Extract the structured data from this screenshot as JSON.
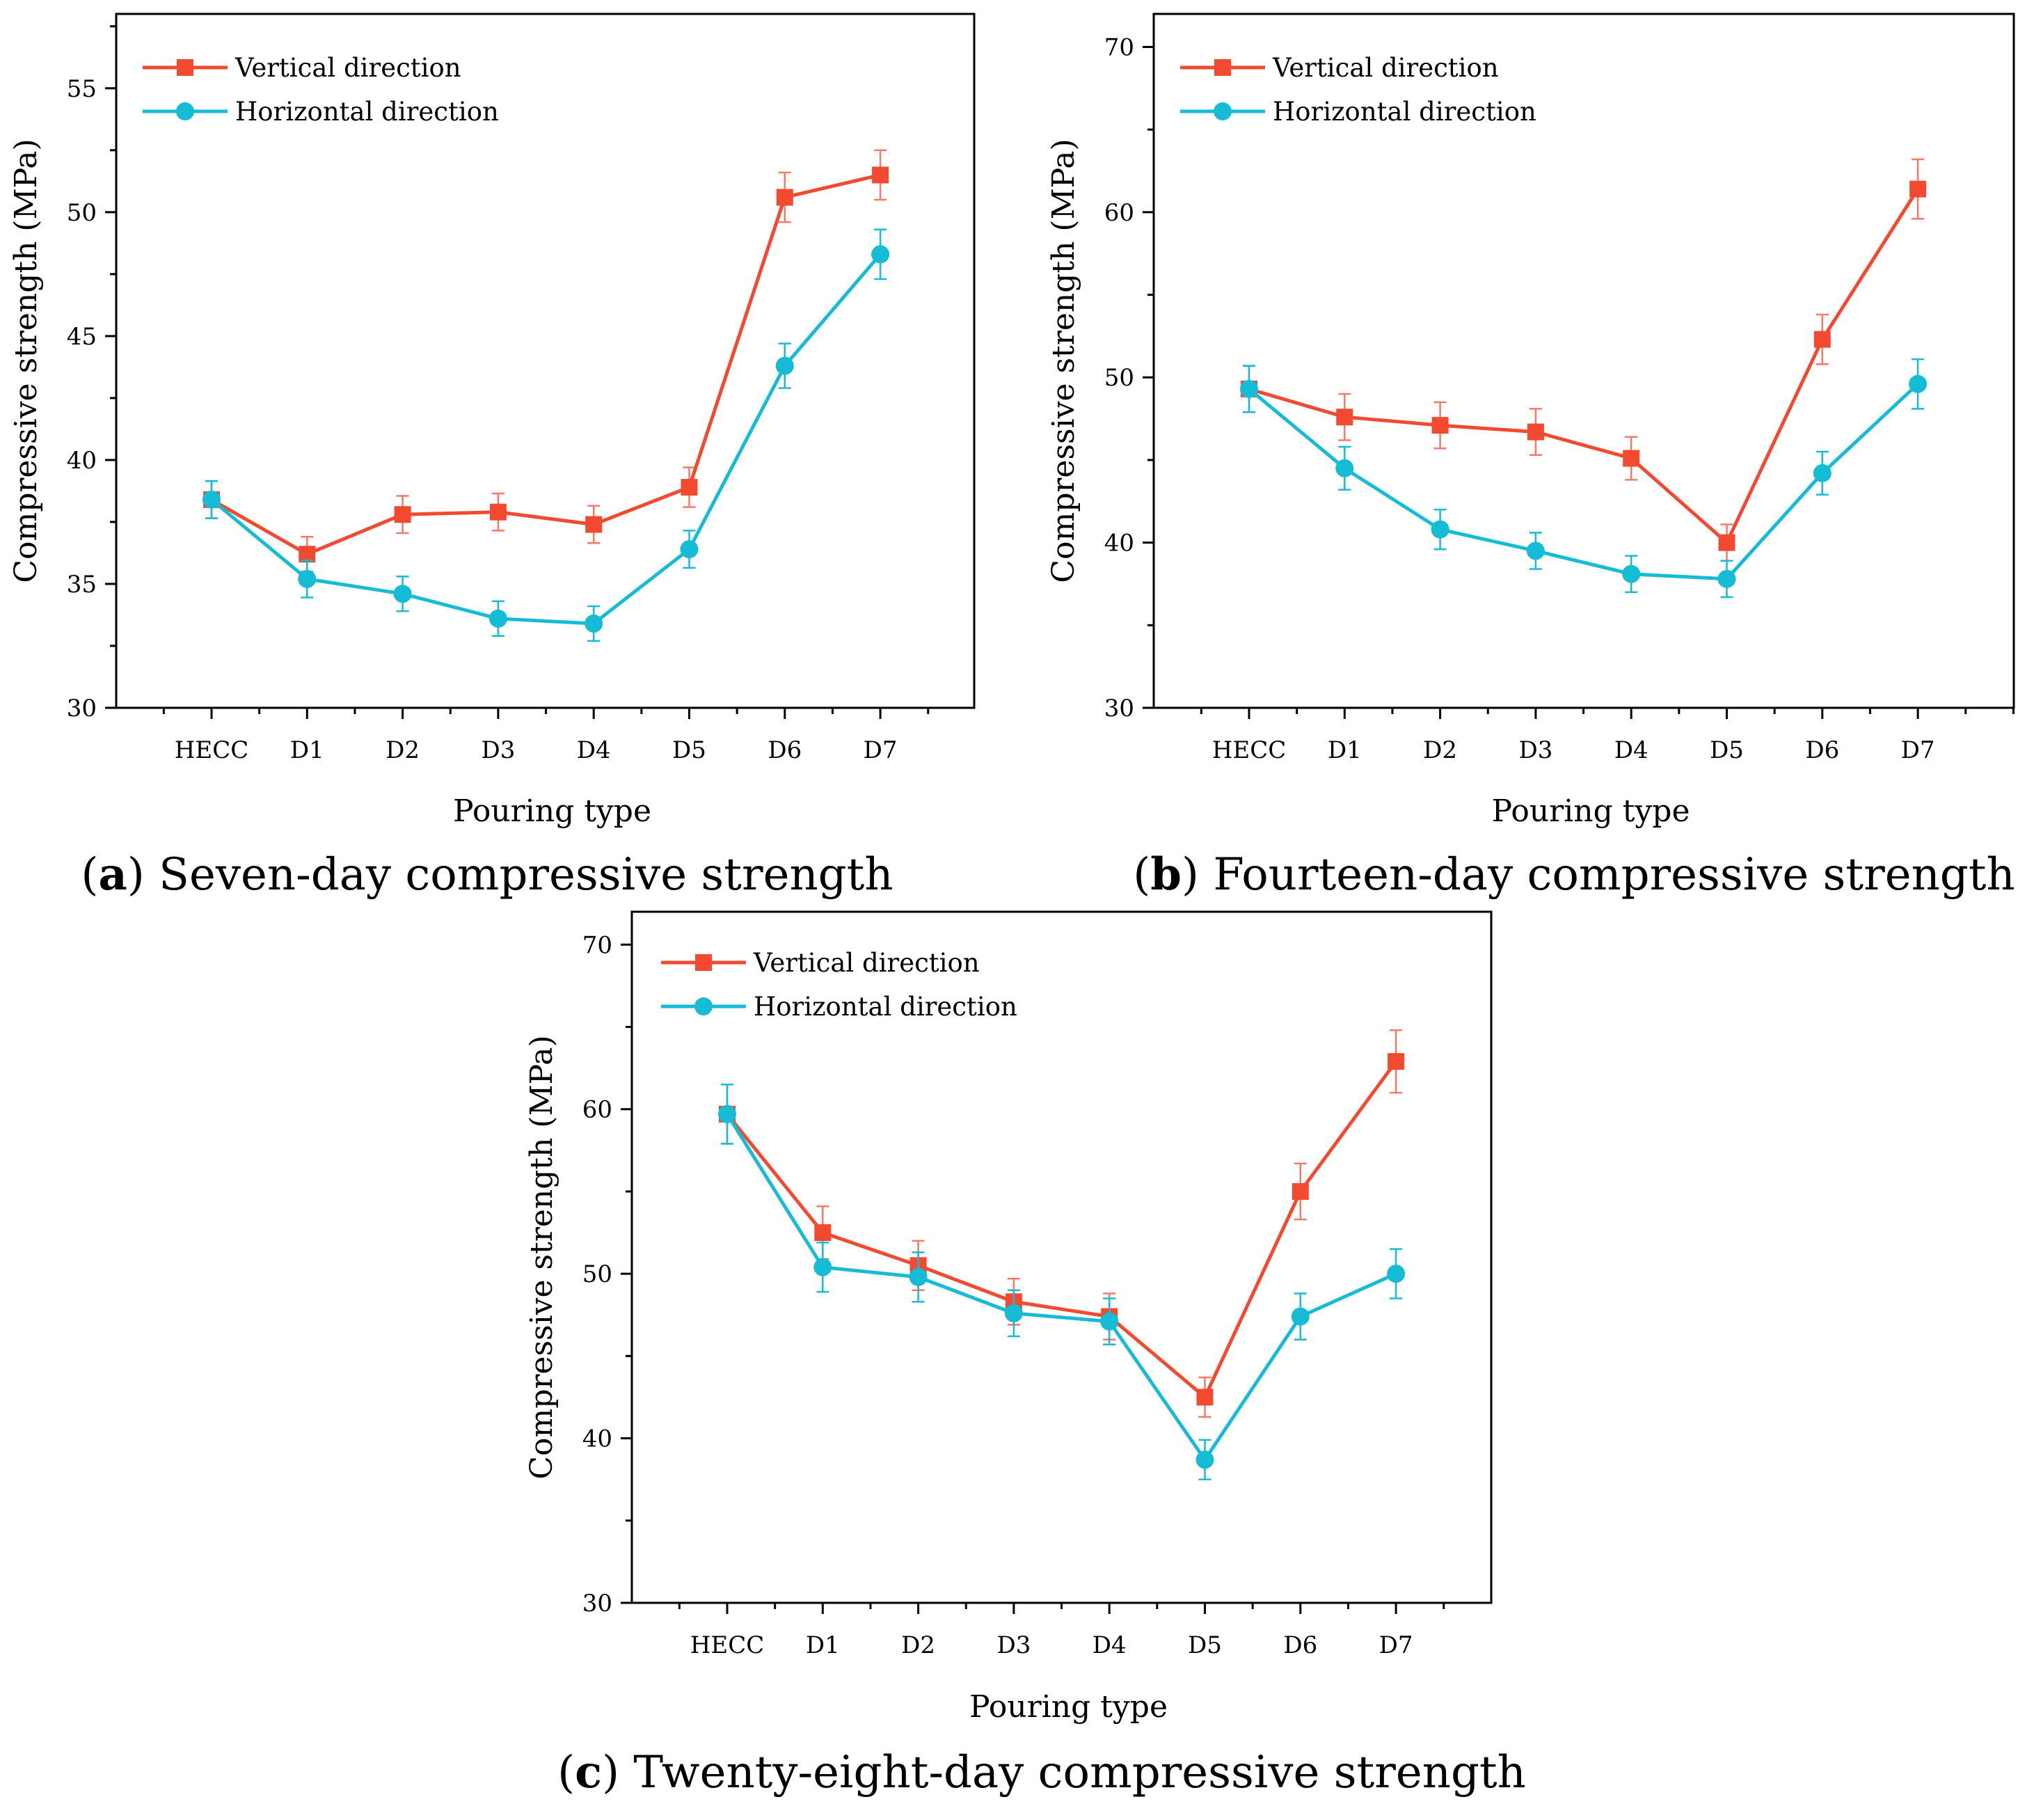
{
  "colors": {
    "vertical": "#F24A30",
    "vertical_err": "#F47A68",
    "horizontal": "#16BBD6",
    "axis": "#000000"
  },
  "chart_data": [
    {
      "type": "line",
      "caption_letter": "a",
      "caption_text": " Seven-day compressive strength",
      "xlabel": "Pouring type",
      "ylabel": "Compressive strength (MPa)",
      "categories": [
        "HECC",
        "D1",
        "D2",
        "D3",
        "D4",
        "D5",
        "D6",
        "D7"
      ],
      "ylim": [
        30,
        58
      ],
      "yticks": [
        30,
        35,
        40,
        45,
        50,
        55
      ],
      "series": [
        {
          "name": "Vertical direction",
          "marker": "square",
          "values": [
            38.4,
            36.2,
            37.8,
            37.9,
            37.4,
            38.9,
            50.6,
            51.5
          ],
          "errors": [
            0.75,
            0.7,
            0.75,
            0.75,
            0.75,
            0.8,
            1.0,
            1.0
          ]
        },
        {
          "name": "Horizontal direction",
          "marker": "circle",
          "values": [
            38.4,
            35.2,
            34.6,
            33.6,
            33.4,
            36.4,
            43.8,
            48.3
          ],
          "errors": [
            0.75,
            0.75,
            0.7,
            0.7,
            0.7,
            0.75,
            0.9,
            1.0
          ]
        }
      ]
    },
    {
      "type": "line",
      "caption_letter": "b",
      "caption_text": " Fourteen-day compressive strength",
      "xlabel": "Pouring type",
      "ylabel": "Compressive strength (MPa)",
      "categories": [
        "HECC",
        "D1",
        "D2",
        "D3",
        "D4",
        "D5",
        "D6",
        "D7"
      ],
      "ylim": [
        30,
        72
      ],
      "yticks": [
        30,
        40,
        50,
        60,
        70
      ],
      "series": [
        {
          "name": "Vertical direction",
          "marker": "square",
          "values": [
            49.3,
            47.6,
            47.1,
            46.7,
            45.1,
            40.0,
            52.3,
            61.4
          ],
          "errors": [
            1.4,
            1.4,
            1.4,
            1.4,
            1.3,
            1.1,
            1.5,
            1.8
          ]
        },
        {
          "name": "Horizontal direction",
          "marker": "circle",
          "values": [
            49.3,
            44.5,
            40.8,
            39.5,
            38.1,
            37.8,
            44.2,
            49.6
          ],
          "errors": [
            1.4,
            1.3,
            1.2,
            1.1,
            1.1,
            1.1,
            1.3,
            1.5
          ]
        }
      ]
    },
    {
      "type": "line",
      "caption_letter": "c",
      "caption_text": " Twenty-eight-day compressive strength",
      "xlabel": "Pouring type",
      "ylabel": "Compressive strength (MPa)",
      "categories": [
        "HECC",
        "D1",
        "D2",
        "D3",
        "D4",
        "D5",
        "D6",
        "D7"
      ],
      "ylim": [
        30,
        72
      ],
      "yticks": [
        30,
        40,
        50,
        60,
        70
      ],
      "series": [
        {
          "name": "Vertical direction",
          "marker": "square",
          "values": [
            59.7,
            52.5,
            50.5,
            48.3,
            47.4,
            42.5,
            55.0,
            62.9
          ],
          "errors": [
            1.8,
            1.6,
            1.5,
            1.4,
            1.4,
            1.2,
            1.7,
            1.9
          ]
        },
        {
          "name": "Horizontal direction",
          "marker": "circle",
          "values": [
            59.7,
            50.4,
            49.8,
            47.6,
            47.1,
            38.7,
            47.4,
            50.0
          ],
          "errors": [
            1.8,
            1.5,
            1.5,
            1.4,
            1.4,
            1.2,
            1.4,
            1.5
          ]
        }
      ]
    }
  ]
}
